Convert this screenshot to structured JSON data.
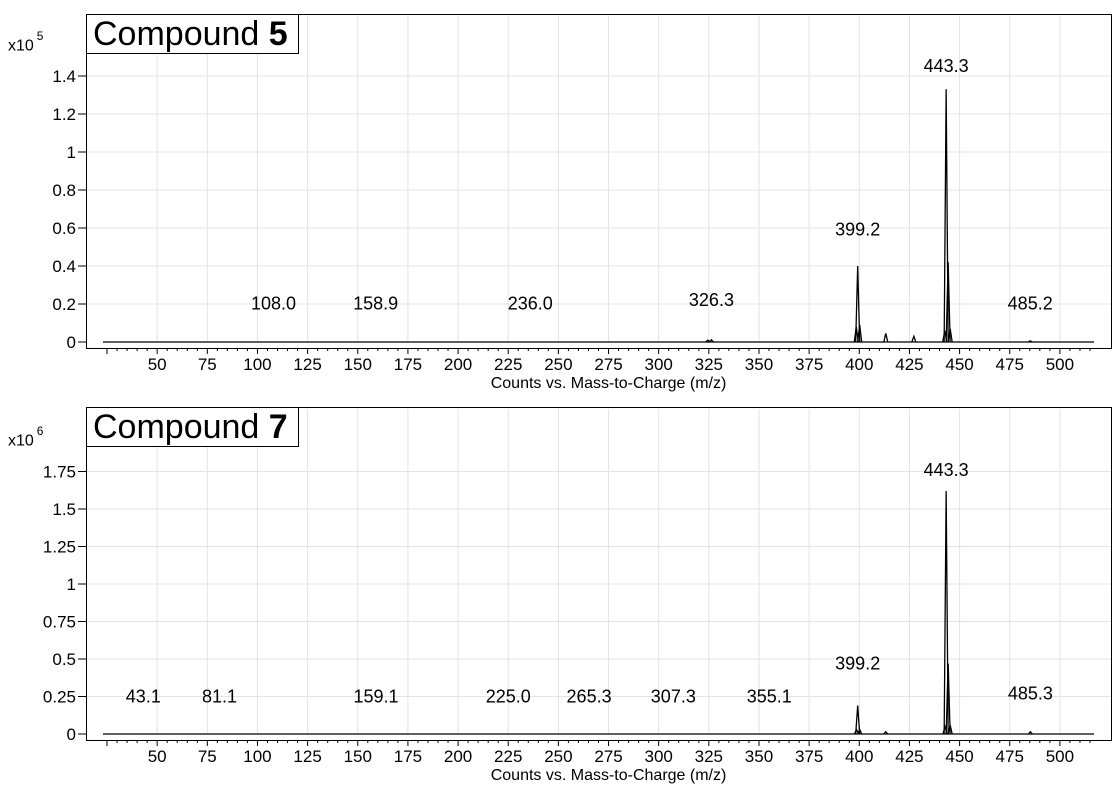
{
  "chart_data": [
    {
      "type": "line",
      "title_text": "Compound",
      "title_bold": "5",
      "scale_prefix": "x10",
      "scale_exponent": "5",
      "xlabel": "Counts vs. Mass-to-Charge (m/z)",
      "ylabel": "",
      "xlim": [
        23,
        517
      ],
      "ylim": [
        0,
        1.5
      ],
      "x_ticks": [
        50,
        75,
        100,
        125,
        150,
        175,
        200,
        225,
        250,
        275,
        300,
        325,
        350,
        375,
        400,
        425,
        450,
        475,
        500
      ],
      "y_ticks": [
        0,
        0.2,
        0.4,
        0.6,
        0.8,
        1,
        1.2,
        1.4
      ],
      "y_tick_labels": [
        "0",
        "0.2",
        "0.4",
        "0.6",
        "0.8",
        "1",
        "1.2",
        "1.4"
      ],
      "grid": true,
      "peaks": [
        {
          "mz": 324.5,
          "intensity": 0.01
        },
        {
          "mz": 326.3,
          "intensity": 0.012
        },
        {
          "mz": 398.5,
          "intensity": 0.08
        },
        {
          "mz": 399.2,
          "intensity": 0.4
        },
        {
          "mz": 400.2,
          "intensity": 0.09
        },
        {
          "mz": 413.2,
          "intensity": 0.045
        },
        {
          "mz": 427.2,
          "intensity": 0.03
        },
        {
          "mz": 442.6,
          "intensity": 0.06
        },
        {
          "mz": 443.3,
          "intensity": 1.33
        },
        {
          "mz": 444.3,
          "intensity": 0.42
        },
        {
          "mz": 445.3,
          "intensity": 0.07
        },
        {
          "mz": 485.2,
          "intensity": 0.006
        }
      ],
      "annotations": [
        {
          "label": "108.0",
          "x": 108.0,
          "y": 0.17
        },
        {
          "label": "158.9",
          "x": 158.9,
          "y": 0.17
        },
        {
          "label": "236.0",
          "x": 236.0,
          "y": 0.17
        },
        {
          "label": "326.3",
          "x": 326.3,
          "y": 0.19
        },
        {
          "label": "399.2",
          "x": 399.2,
          "y": 0.56
        },
        {
          "label": "443.3",
          "x": 443.3,
          "y": 1.42
        },
        {
          "label": "485.2",
          "x": 485.2,
          "y": 0.17
        }
      ]
    },
    {
      "type": "line",
      "title_text": "Compound",
      "title_bold": "7",
      "scale_prefix": "x10",
      "scale_exponent": "6",
      "xlabel": "Counts vs. Mass-to-Charge (m/z)",
      "ylabel": "",
      "xlim": [
        23,
        517
      ],
      "ylim": [
        0,
        1.9
      ],
      "x_ticks": [
        50,
        75,
        100,
        125,
        150,
        175,
        200,
        225,
        250,
        275,
        300,
        325,
        350,
        375,
        400,
        425,
        450,
        475,
        500
      ],
      "y_ticks": [
        0,
        0.25,
        0.5,
        0.75,
        1,
        1.25,
        1.5,
        1.75
      ],
      "y_tick_labels": [
        "0",
        "0.25",
        "0.5",
        "0.75",
        "1",
        "1.25",
        "1.5",
        "1.75"
      ],
      "grid": true,
      "peaks": [
        {
          "mz": 398.6,
          "intensity": 0.03
        },
        {
          "mz": 399.2,
          "intensity": 0.19
        },
        {
          "mz": 400.2,
          "intensity": 0.03
        },
        {
          "mz": 413.2,
          "intensity": 0.015
        },
        {
          "mz": 442.7,
          "intensity": 0.05
        },
        {
          "mz": 443.3,
          "intensity": 1.62
        },
        {
          "mz": 444.3,
          "intensity": 0.47
        },
        {
          "mz": 445.3,
          "intensity": 0.06
        },
        {
          "mz": 485.3,
          "intensity": 0.015
        }
      ],
      "annotations": [
        {
          "label": "43.1",
          "x": 43.1,
          "y": 0.21
        },
        {
          "label": "81.1",
          "x": 81.1,
          "y": 0.21
        },
        {
          "label": "159.1",
          "x": 159.1,
          "y": 0.21
        },
        {
          "label": "225.0",
          "x": 225.0,
          "y": 0.21
        },
        {
          "label": "265.3",
          "x": 265.3,
          "y": 0.21
        },
        {
          "label": "307.3",
          "x": 307.3,
          "y": 0.21
        },
        {
          "label": "355.1",
          "x": 355.1,
          "y": 0.21
        },
        {
          "label": "399.2",
          "x": 399.2,
          "y": 0.43
        },
        {
          "label": "443.3",
          "x": 443.3,
          "y": 1.72
        },
        {
          "label": "485.3",
          "x": 485.3,
          "y": 0.23
        }
      ]
    }
  ]
}
